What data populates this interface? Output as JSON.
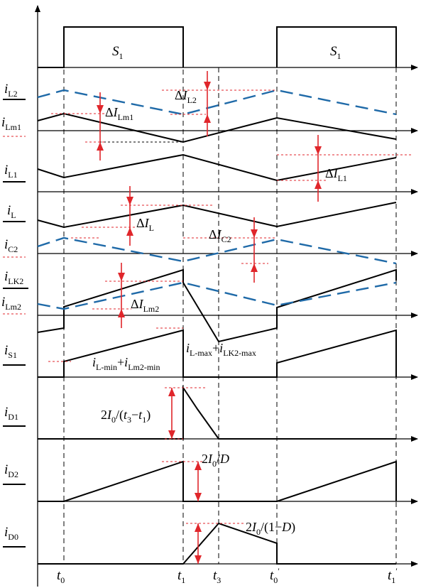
{
  "colors": {
    "blue_dashed": "#1f6aa8",
    "red_markers": "#e0262b",
    "ink": "#000000"
  },
  "gate": {
    "s1_first": [
      "S",
      "1"
    ],
    "s1_second": [
      "S",
      "1"
    ]
  },
  "rows": {
    "iL2": [
      "i",
      "L2"
    ],
    "iLm1": [
      "i",
      "Lm1"
    ],
    "iL1": [
      "i",
      "L1"
    ],
    "iL": [
      "i",
      "L"
    ],
    "iC2": [
      "i",
      "C2"
    ],
    "iLK2": [
      "i",
      "LK2"
    ],
    "iLm2": [
      "i",
      "Lm2"
    ],
    "iS1": [
      "i",
      "S1"
    ],
    "iD1": [
      "i",
      "D1"
    ],
    "iD2": [
      "i",
      "D2"
    ],
    "iD0": [
      "i",
      "D0"
    ]
  },
  "annotations": {
    "dIL2": [
      "Δ",
      "I",
      "L2"
    ],
    "dILm1": [
      "Δ",
      "I",
      "Lm1"
    ],
    "dIL1": [
      "Δ",
      "I",
      "L1"
    ],
    "dIL": [
      "Δ",
      "I",
      "L"
    ],
    "dIC2": [
      "Δ",
      "I",
      "C2"
    ],
    "dILm2": [
      "Δ",
      "I",
      "Lm2"
    ],
    "peak": [
      "i",
      "L-max",
      "+",
      "i",
      "LK2-max"
    ],
    "valley": [
      "i",
      "L-min",
      "+",
      "i",
      "Lm2-min"
    ],
    "d1": [
      "2",
      "I",
      "0",
      "/(",
      "t",
      "3",
      "−",
      "t",
      "1",
      ")"
    ],
    "d2": [
      "2",
      "I",
      "0",
      "/",
      "D"
    ],
    "d0": [
      "2",
      "I",
      "0",
      "/(1−",
      "D",
      ")"
    ]
  },
  "time_axis": {
    "t0": [
      "t",
      "0",
      ""
    ],
    "t1": [
      "t",
      "1",
      ""
    ],
    "t3": [
      "t",
      "3",
      ""
    ],
    "t0p": [
      "t",
      "0",
      "′"
    ],
    "t1p": [
      "t",
      "1",
      "′"
    ]
  }
}
